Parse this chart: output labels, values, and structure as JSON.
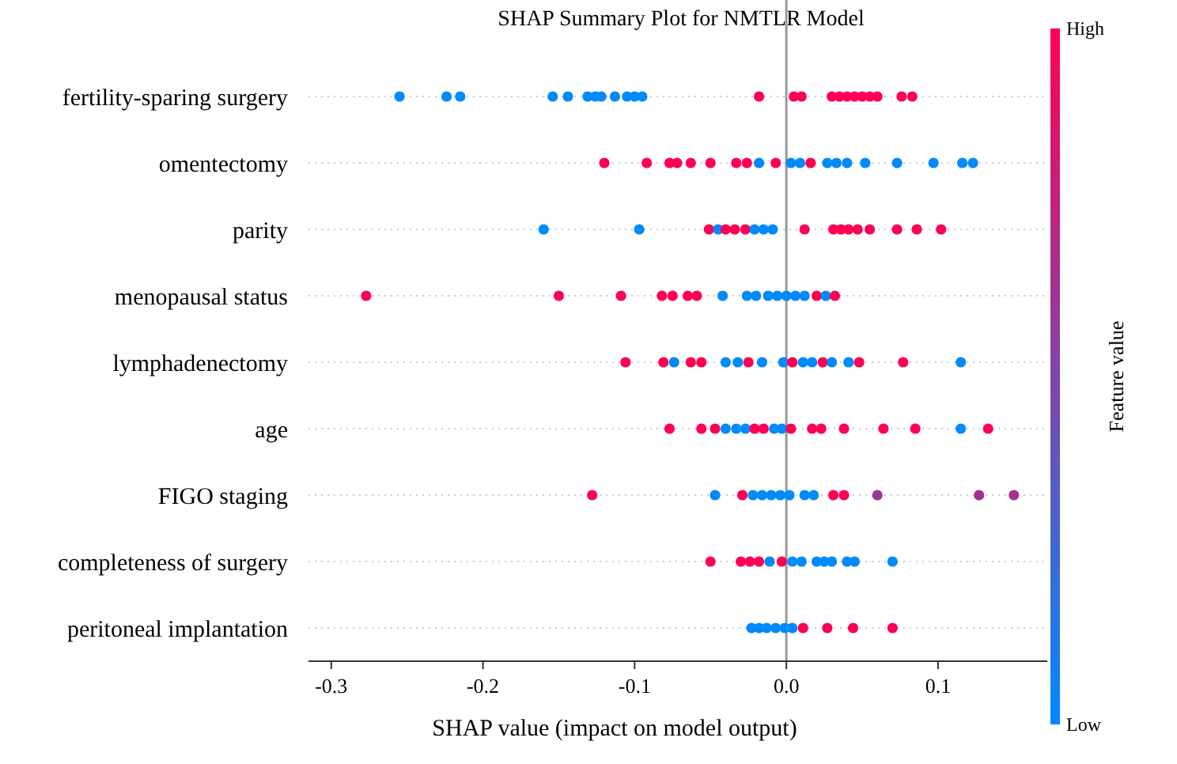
{
  "chart_data": {
    "type": "scatter",
    "orientation": "horizontal",
    "title": "SHAP Summary Plot for NMTLR Model",
    "xlabel": "SHAP value (impact on model output)",
    "clabel": "Feature value",
    "categories": [
      "fertility-sparing surgery",
      "omentectomy",
      "parity",
      "menopausal status",
      "lymphadenectomy",
      "age",
      "FIGO staging",
      "completeness of surgery",
      "peritoneal implantation"
    ],
    "xlim": [
      -0.315,
      0.172
    ],
    "xticks": [
      {
        "value": -0.3,
        "label": "-0.3"
      },
      {
        "value": -0.2,
        "label": "-0.2"
      },
      {
        "value": -0.1,
        "label": "-0.1"
      },
      {
        "value": 0,
        "label": "0.0"
      },
      {
        "value": 0.1,
        "label": "0.1"
      }
    ],
    "clim": [
      0,
      1
    ],
    "cticks": [
      {
        "value": 0,
        "label": "Low"
      },
      {
        "value": 1,
        "label": "High"
      }
    ],
    "grid": "y",
    "marker": "circle",
    "ref_lines": [
      {
        "axis": "x",
        "value": 0,
        "color": "#999999"
      }
    ],
    "series": [
      {
        "x": [
          "fertility-sparing surgery",
          "fertility-sparing surgery",
          "fertility-sparing surgery",
          "fertility-sparing surgery",
          "fertility-sparing surgery",
          "fertility-sparing surgery",
          "fertility-sparing surgery",
          "fertility-sparing surgery",
          "fertility-sparing surgery",
          "fertility-sparing surgery",
          "fertility-sparing surgery",
          "fertility-sparing surgery",
          "fertility-sparing surgery",
          "fertility-sparing surgery",
          "fertility-sparing surgery",
          "fertility-sparing surgery",
          "fertility-sparing surgery",
          "fertility-sparing surgery",
          "fertility-sparing surgery",
          "fertility-sparing surgery",
          "fertility-sparing surgery",
          "fertility-sparing surgery",
          "fertility-sparing surgery",
          "fertility-sparing surgery",
          "omentectomy",
          "omentectomy",
          "omentectomy",
          "omentectomy",
          "omentectomy",
          "omentectomy",
          "omentectomy",
          "omentectomy",
          "omentectomy",
          "omentectomy",
          "omentectomy",
          "omentectomy",
          "omentectomy",
          "omentectomy",
          "omentectomy",
          "omentectomy",
          "omentectomy",
          "omentectomy",
          "omentectomy",
          "omentectomy",
          "omentectomy",
          "parity",
          "parity",
          "parity",
          "parity",
          "parity",
          "parity",
          "parity",
          "parity",
          "parity",
          "parity",
          "parity",
          "parity",
          "parity",
          "parity",
          "parity",
          "parity",
          "parity",
          "parity",
          "parity",
          "menopausal status",
          "menopausal status",
          "menopausal status",
          "menopausal status",
          "menopausal status",
          "menopausal status",
          "menopausal status",
          "menopausal status",
          "menopausal status",
          "menopausal status",
          "menopausal status",
          "menopausal status",
          "menopausal status",
          "menopausal status",
          "menopausal status",
          "menopausal status",
          "menopausal status",
          "menopausal status",
          "lymphadenectomy",
          "lymphadenectomy",
          "lymphadenectomy",
          "lymphadenectomy",
          "lymphadenectomy",
          "lymphadenectomy",
          "lymphadenectomy",
          "lymphadenectomy",
          "lymphadenectomy",
          "lymphadenectomy",
          "lymphadenectomy",
          "lymphadenectomy",
          "lymphadenectomy",
          "lymphadenectomy",
          "lymphadenectomy",
          "lymphadenectomy",
          "lymphadenectomy",
          "lymphadenectomy",
          "lymphadenectomy",
          "age",
          "age",
          "age",
          "age",
          "age",
          "age",
          "age",
          "age",
          "age",
          "age",
          "age",
          "age",
          "age",
          "age",
          "age",
          "age",
          "age",
          "age",
          "FIGO staging",
          "FIGO staging",
          "FIGO staging",
          "FIGO staging",
          "FIGO staging",
          "FIGO staging",
          "FIGO staging",
          "FIGO staging",
          "FIGO staging",
          "FIGO staging",
          "FIGO staging",
          "FIGO staging",
          "FIGO staging",
          "FIGO staging",
          "FIGO staging",
          "completeness of surgery",
          "completeness of surgery",
          "completeness of surgery",
          "completeness of surgery",
          "completeness of surgery",
          "completeness of surgery",
          "completeness of surgery",
          "completeness of surgery",
          "completeness of surgery",
          "completeness of surgery",
          "completeness of surgery",
          "completeness of surgery",
          "completeness of surgery",
          "completeness of surgery",
          "peritoneal implantation",
          "peritoneal implantation",
          "peritoneal implantation",
          "peritoneal implantation",
          "peritoneal implantation",
          "peritoneal implantation",
          "peritoneal implantation",
          "peritoneal implantation",
          "peritoneal implantation",
          "peritoneal implantation"
        ],
        "values": [
          -0.255,
          -0.224,
          -0.215,
          -0.154,
          -0.144,
          -0.131,
          -0.126,
          -0.122,
          -0.113,
          -0.105,
          -0.1,
          -0.095,
          -0.018,
          0.005,
          0.01,
          0.03,
          0.035,
          0.04,
          0.045,
          0.05,
          0.055,
          0.06,
          0.076,
          0.083,
          -0.12,
          -0.092,
          -0.077,
          -0.072,
          -0.063,
          -0.05,
          -0.033,
          -0.026,
          -0.018,
          -0.007,
          0.003,
          0.009,
          0.016,
          0.027,
          0.033,
          0.04,
          0.052,
          0.073,
          0.097,
          0.116,
          0.123,
          -0.16,
          -0.097,
          -0.051,
          -0.045,
          -0.04,
          -0.034,
          -0.027,
          -0.021,
          -0.015,
          -0.009,
          0.012,
          0.031,
          0.036,
          0.041,
          0.047,
          0.055,
          0.073,
          0.086,
          0.102,
          -0.277,
          -0.15,
          -0.109,
          -0.082,
          -0.075,
          -0.065,
          -0.059,
          -0.042,
          -0.026,
          -0.02,
          -0.012,
          -0.006,
          0.0,
          0.006,
          0.012,
          0.02,
          0.026,
          0.032,
          -0.106,
          -0.081,
          -0.074,
          -0.063,
          -0.056,
          -0.04,
          -0.032,
          -0.025,
          -0.016,
          -0.002,
          0.004,
          0.011,
          0.017,
          0.024,
          0.03,
          0.041,
          0.048,
          0.077,
          0.115,
          -0.077,
          -0.056,
          -0.047,
          -0.04,
          -0.033,
          -0.027,
          -0.021,
          -0.015,
          -0.008,
          -0.003,
          0.003,
          0.017,
          0.023,
          0.038,
          0.064,
          0.085,
          0.115,
          0.133,
          -0.128,
          -0.047,
          -0.029,
          -0.022,
          -0.016,
          -0.01,
          -0.004,
          0.002,
          0.012,
          0.018,
          0.031,
          0.038,
          0.06,
          0.127,
          0.15,
          -0.05,
          -0.03,
          -0.024,
          -0.018,
          -0.011,
          -0.003,
          0.004,
          0.01,
          0.02,
          0.025,
          0.03,
          0.04,
          0.045,
          0.07,
          -0.023,
          -0.018,
          -0.013,
          -0.007,
          -0.001,
          0.004,
          0.011,
          0.027,
          0.044,
          0.07
        ],
        "cvalues": [
          0,
          0,
          0,
          0,
          0,
          0,
          0,
          0,
          0,
          0,
          0,
          0,
          1,
          1,
          1,
          1,
          1,
          1,
          1,
          1,
          1,
          1,
          1,
          1,
          1,
          1,
          1,
          1,
          1,
          1,
          1,
          1,
          0,
          1,
          0,
          0,
          1,
          0,
          0,
          0,
          0,
          0,
          0,
          0,
          0,
          0,
          0,
          1,
          0,
          1,
          1,
          1,
          0,
          0,
          0,
          1,
          1,
          1,
          1,
          1,
          1,
          1,
          1,
          1,
          1,
          1,
          1,
          1,
          1,
          1,
          1,
          0,
          0,
          0,
          0,
          0,
          0,
          0,
          0,
          1,
          0,
          1,
          1,
          1,
          0,
          1,
          1,
          0,
          0,
          1,
          0,
          0,
          1,
          0,
          0,
          1,
          0,
          0,
          1,
          1,
          0,
          1,
          1,
          1,
          0,
          0,
          0,
          1,
          1,
          0,
          0,
          1,
          1,
          1,
          1,
          1,
          1,
          0,
          1,
          1,
          0,
          1,
          0,
          0,
          0,
          0,
          0,
          0,
          0,
          1,
          1,
          0.6,
          0.65,
          0.65,
          1,
          1,
          1,
          1,
          0,
          1,
          0,
          0,
          0,
          0,
          0,
          0,
          0,
          0,
          0,
          0,
          0,
          0,
          0,
          0,
          1,
          1,
          1,
          1
        ]
      }
    ]
  }
}
